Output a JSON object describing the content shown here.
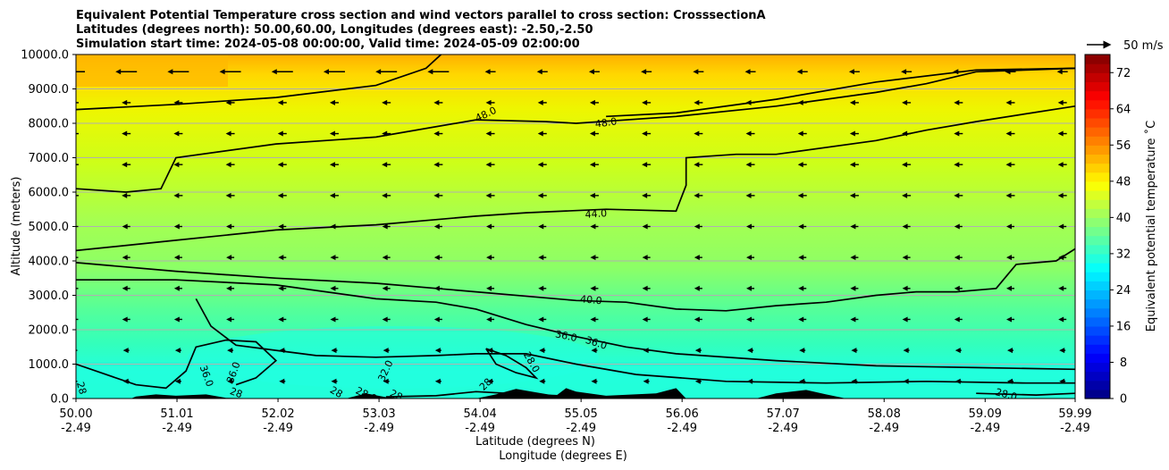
{
  "chart_data": {
    "type": "contour",
    "title_lines": [
      "Equivalent Potential Temperature cross section and wind vectors parallel to cross section: CrosssectionA",
      "Latitudes (degrees north): 50.00,60.00, Longitudes (degrees east): -2.50,-2.50",
      "Simulation start time: 2024-05-08 00:00:00, Valid time: 2024-05-09 02:00:00"
    ],
    "xlabel_lines": [
      "Latitude (degrees N)",
      "Longitude (degrees E)"
    ],
    "ylabel": "Altitude (meters)",
    "x_range": [
      50.0,
      59.99
    ],
    "y_range": [
      0,
      10000
    ],
    "x_ticks": [
      {
        "lat": "50.00",
        "lon": "-2.49",
        "v": 50.0
      },
      {
        "lat": "51.01",
        "lon": "-2.49",
        "v": 51.01
      },
      {
        "lat": "52.02",
        "lon": "-2.49",
        "v": 52.02
      },
      {
        "lat": "53.03",
        "lon": "-2.49",
        "v": 53.03
      },
      {
        "lat": "54.04",
        "lon": "-2.49",
        "v": 54.04
      },
      {
        "lat": "55.05",
        "lon": "-2.49",
        "v": 55.05
      },
      {
        "lat": "56.06",
        "lon": "-2.49",
        "v": 56.06
      },
      {
        "lat": "57.07",
        "lon": "-2.49",
        "v": 57.07
      },
      {
        "lat": "58.08",
        "lon": "-2.49",
        "v": 58.08
      },
      {
        "lat": "59.09",
        "lon": "-2.49",
        "v": 59.09
      },
      {
        "lat": "59.99",
        "lon": "-2.49",
        "v": 59.99
      }
    ],
    "y_ticks": [
      {
        "label": "0.0",
        "v": 0
      },
      {
        "label": "1000.0",
        "v": 1000
      },
      {
        "label": "2000.0",
        "v": 2000
      },
      {
        "label": "3000.0",
        "v": 3000
      },
      {
        "label": "4000.0",
        "v": 4000
      },
      {
        "label": "5000.0",
        "v": 5000
      },
      {
        "label": "6000.0",
        "v": 6000
      },
      {
        "label": "7000.0",
        "v": 7000
      },
      {
        "label": "8000.0",
        "v": 8000
      },
      {
        "label": "9000.0",
        "v": 9000
      },
      {
        "label": "10000.0",
        "v": 10000
      }
    ],
    "grid": "horizontal",
    "colorbar": {
      "label": "Equivalent potential temperature ˚C",
      "min": 0,
      "max": 76,
      "step": 2,
      "ticks": [
        "0",
        "8",
        "16",
        "24",
        "32",
        "40",
        "48",
        "56",
        "64",
        "72"
      ],
      "tick_values": [
        0,
        8,
        16,
        24,
        32,
        40,
        48,
        56,
        64,
        72
      ]
    },
    "quiver_key": {
      "label": "50 m/s"
    },
    "contours": [
      {
        "level": 48.0,
        "points": [
          [
            50.0,
            8400
          ],
          [
            51.0,
            8550
          ],
          [
            52.0,
            8750
          ],
          [
            53.0,
            9100
          ],
          [
            53.5,
            9600
          ],
          [
            53.65,
            10000
          ]
        ]
      },
      {
        "level": 48.0,
        "points": [
          [
            50.0,
            6100
          ],
          [
            50.5,
            6000
          ],
          [
            50.85,
            6100
          ],
          [
            51.0,
            7000
          ],
          [
            52.0,
            7400
          ],
          [
            53.0,
            7600
          ],
          [
            54.0,
            8100
          ],
          [
            54.7,
            8050
          ],
          [
            55.0,
            8000
          ],
          [
            56.0,
            8200
          ],
          [
            57.0,
            8500
          ],
          [
            58.0,
            8900
          ],
          [
            58.5,
            9150
          ],
          [
            59.0,
            9500
          ],
          [
            59.99,
            9600
          ]
        ]
      },
      {
        "level": 48.0,
        "points": [
          [
            55.3,
            8200
          ],
          [
            56.0,
            8300
          ],
          [
            57.0,
            8700
          ],
          [
            58.0,
            9200
          ],
          [
            59.0,
            9550
          ],
          [
            59.99,
            9600
          ]
        ]
      },
      {
        "level": 44.0,
        "points": [
          [
            50.0,
            4300
          ],
          [
            51.0,
            4600
          ],
          [
            52.0,
            4900
          ],
          [
            53.0,
            5050
          ],
          [
            54.0,
            5300
          ],
          [
            54.5,
            5400
          ],
          [
            55.3,
            5500
          ],
          [
            56.0,
            5450
          ],
          [
            56.1,
            6200
          ],
          [
            56.1,
            7000
          ],
          [
            56.6,
            7100
          ],
          [
            57.0,
            7100
          ],
          [
            58.0,
            7500
          ],
          [
            58.5,
            7800
          ],
          [
            59.0,
            8050
          ],
          [
            59.99,
            8500
          ]
        ]
      },
      {
        "level": 40.0,
        "points": [
          [
            50.0,
            3950
          ],
          [
            51.0,
            3700
          ],
          [
            52.0,
            3500
          ],
          [
            53.0,
            3350
          ],
          [
            54.0,
            3100
          ],
          [
            55.0,
            2850
          ],
          [
            55.5,
            2800
          ],
          [
            56.0,
            2600
          ],
          [
            56.5,
            2550
          ],
          [
            57.0,
            2700
          ],
          [
            57.5,
            2800
          ],
          [
            58.0,
            3000
          ],
          [
            58.4,
            3100
          ],
          [
            58.8,
            3100
          ],
          [
            59.2,
            3200
          ],
          [
            59.4,
            3900
          ],
          [
            59.8,
            4000
          ],
          [
            59.99,
            4350
          ]
        ]
      },
      {
        "level": 36.0,
        "points": [
          [
            50.0,
            3450
          ],
          [
            51.0,
            3450
          ],
          [
            52.0,
            3300
          ],
          [
            53.0,
            2900
          ],
          [
            53.6,
            2800
          ],
          [
            54.0,
            2600
          ],
          [
            54.5,
            2150
          ],
          [
            55.0,
            1800
          ],
          [
            55.5,
            1500
          ],
          [
            56.0,
            1300
          ],
          [
            57.0,
            1100
          ],
          [
            58.0,
            950
          ],
          [
            59.0,
            900
          ],
          [
            59.99,
            850
          ]
        ]
      },
      {
        "level": 36.0,
        "points": [
          [
            51.2,
            2900
          ],
          [
            51.35,
            2100
          ],
          [
            51.6,
            1550
          ],
          [
            52.0,
            1400
          ],
          [
            52.4,
            1250
          ],
          [
            53.0,
            1200
          ],
          [
            53.6,
            1250
          ],
          [
            54.0,
            1300
          ],
          [
            54.5,
            1300
          ],
          [
            55.0,
            1000
          ],
          [
            55.6,
            700
          ],
          [
            56.5,
            500
          ],
          [
            57.5,
            450
          ],
          [
            58.5,
            500
          ],
          [
            59.5,
            450
          ],
          [
            59.99,
            450
          ]
        ]
      },
      {
        "level": 32.0,
        "points": [
          [
            50.0,
            1000
          ],
          [
            50.3,
            700
          ],
          [
            50.6,
            400
          ],
          [
            50.9,
            300
          ],
          [
            51.1,
            800
          ],
          [
            51.2,
            1500
          ],
          [
            51.5,
            1700
          ],
          [
            51.8,
            1650
          ],
          [
            52.0,
            1100
          ],
          [
            51.8,
            600
          ],
          [
            51.6,
            400
          ]
        ]
      },
      {
        "level": 28.0,
        "points": [
          [
            54.1,
            1450
          ],
          [
            54.3,
            1250
          ],
          [
            54.5,
            900
          ],
          [
            54.6,
            600
          ],
          [
            54.4,
            750
          ],
          [
            54.2,
            1000
          ],
          [
            54.1,
            1450
          ]
        ]
      },
      {
        "level": 28.0,
        "points": [
          [
            53.1,
            50
          ],
          [
            53.6,
            80
          ],
          [
            54.0,
            200
          ],
          [
            54.5,
            120
          ],
          [
            55.0,
            60
          ]
        ]
      },
      {
        "level": 28.0,
        "points": [
          [
            59.0,
            150
          ],
          [
            59.6,
            100
          ],
          [
            59.99,
            150
          ]
        ]
      }
    ],
    "contour_labels": [
      {
        "text": "48.0",
        "x": 54.1,
        "y": 8250,
        "rot": -25
      },
      {
        "text": "48.0",
        "x": 55.3,
        "y": 8000,
        "rot": -8
      },
      {
        "text": "44.0",
        "x": 55.2,
        "y": 5350,
        "rot": -4
      },
      {
        "text": "40.0",
        "x": 55.15,
        "y": 2850,
        "rot": 5
      },
      {
        "text": "36.0",
        "x": 54.9,
        "y": 1800,
        "rot": 12
      },
      {
        "text": "36.0",
        "x": 55.2,
        "y": 1600,
        "rot": 18
      },
      {
        "text": "36.0",
        "x": 51.3,
        "y": 650,
        "rot": 70
      },
      {
        "text": "36.0",
        "x": 51.58,
        "y": 750,
        "rot": -70
      },
      {
        "text": "32.0",
        "x": 53.1,
        "y": 800,
        "rot": -65
      },
      {
        "text": "28.0",
        "x": 54.55,
        "y": 1050,
        "rot": 60
      },
      {
        "text": "28",
        "x": 50.05,
        "y": 300,
        "rot": 75
      },
      {
        "text": "28",
        "x": 51.6,
        "y": 150,
        "rot": 20
      },
      {
        "text": "28",
        "x": 52.6,
        "y": 170,
        "rot": 30
      },
      {
        "text": "28.0",
        "x": 52.9,
        "y": 100,
        "rot": 25
      },
      {
        "text": "28",
        "x": 53.2,
        "y": 80,
        "rot": 25
      },
      {
        "text": "28",
        "x": 54.1,
        "y": 400,
        "rot": -45
      },
      {
        "text": "28.0",
        "x": 59.3,
        "y": 100,
        "rot": 15
      }
    ],
    "terrain": [
      [
        50.0,
        0
      ],
      [
        50.55,
        0
      ],
      [
        50.6,
        60
      ],
      [
        50.8,
        120
      ],
      [
        51.0,
        80
      ],
      [
        51.3,
        120
      ],
      [
        51.5,
        20
      ],
      [
        52.0,
        0
      ],
      [
        52.7,
        0
      ],
      [
        52.9,
        150
      ],
      [
        53.1,
        40
      ],
      [
        53.3,
        0
      ],
      [
        54.0,
        0
      ],
      [
        54.2,
        120
      ],
      [
        54.4,
        280
      ],
      [
        54.6,
        180
      ],
      [
        54.8,
        80
      ],
      [
        54.9,
        300
      ],
      [
        55.0,
        200
      ],
      [
        55.3,
        80
      ],
      [
        55.8,
        150
      ],
      [
        56.0,
        300
      ],
      [
        56.1,
        0
      ],
      [
        56.8,
        0
      ],
      [
        57.0,
        150
      ],
      [
        57.3,
        250
      ],
      [
        57.5,
        120
      ],
      [
        57.7,
        0
      ],
      [
        59.99,
        0
      ]
    ]
  }
}
